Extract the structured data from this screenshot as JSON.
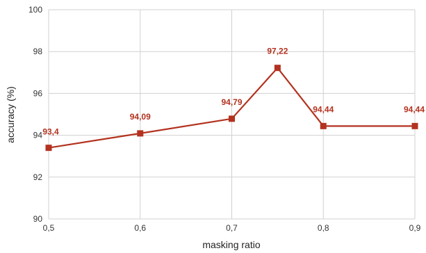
{
  "chart_data": {
    "type": "line",
    "title": "",
    "xlabel": "masking ratio",
    "ylabel": "accuracy (%)",
    "xlim": [
      0.5,
      0.9
    ],
    "ylim": [
      90,
      100
    ],
    "x_ticks": [
      "0,5",
      "0,6",
      "0,7",
      "0,8",
      "0,9"
    ],
    "y_ticks": [
      "90",
      "92",
      "94",
      "96",
      "98",
      "100"
    ],
    "grid": true,
    "legend": "none",
    "series": [
      {
        "color": "#b3321f",
        "marker": "square",
        "x": [
          0.5,
          0.6,
          0.7,
          0.75,
          0.8,
          0.9
        ],
        "y": [
          93.4,
          94.09,
          94.79,
          97.22,
          94.44,
          94.44
        ],
        "labels": [
          "93,4",
          "94,09",
          "94,79",
          "97,22",
          "94,44",
          "94,44"
        ]
      }
    ]
  }
}
